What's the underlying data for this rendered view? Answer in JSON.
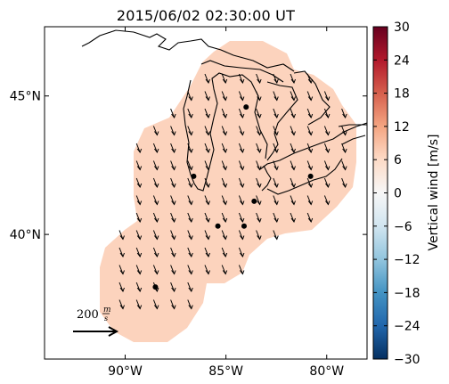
{
  "title": "2015/06/02 02:30:00 UT",
  "map": {
    "lon_range": [
      -94.0,
      -78.0
    ],
    "lat_range": [
      35.5,
      47.5
    ],
    "x_ticks": [
      {
        "lon": -90,
        "label": "90°W"
      },
      {
        "lon": -85,
        "label": "85°W"
      },
      {
        "lon": -80,
        "label": "80°W"
      }
    ],
    "y_ticks": [
      {
        "lat": 45,
        "label": "45°N"
      },
      {
        "lat": 40,
        "label": "40°N"
      }
    ],
    "coverage_color": "#fcd3bd",
    "site_markers": [
      {
        "lon": -84.0,
        "lat": 44.6
      },
      {
        "lon": -86.6,
        "lat": 42.1
      },
      {
        "lon": -83.6,
        "lat": 41.2
      },
      {
        "lon": -85.4,
        "lat": 40.3
      },
      {
        "lon": -84.1,
        "lat": 40.3
      },
      {
        "lon": -80.8,
        "lat": 42.1
      },
      {
        "lon": -88.5,
        "lat": 38.1
      }
    ],
    "wind_direction": "toward southeast, uniform",
    "scale_arrow": {
      "label": "200 m/s",
      "value": "200",
      "unit_num": "m",
      "unit_den": "s"
    }
  },
  "colorbar": {
    "label": "Vertical wind [m/s]",
    "ticks": [
      "30",
      "24",
      "18",
      "12",
      "6",
      "0",
      "−6",
      "−12",
      "−18",
      "−24",
      "−30"
    ],
    "colormap": [
      "#053061",
      "#2166ac",
      "#4393c3",
      "#92c5de",
      "#d1e5f0",
      "#f7f7f7",
      "#fddbc7",
      "#f4a582",
      "#d6604d",
      "#b2182b",
      "#67001f"
    ]
  }
}
